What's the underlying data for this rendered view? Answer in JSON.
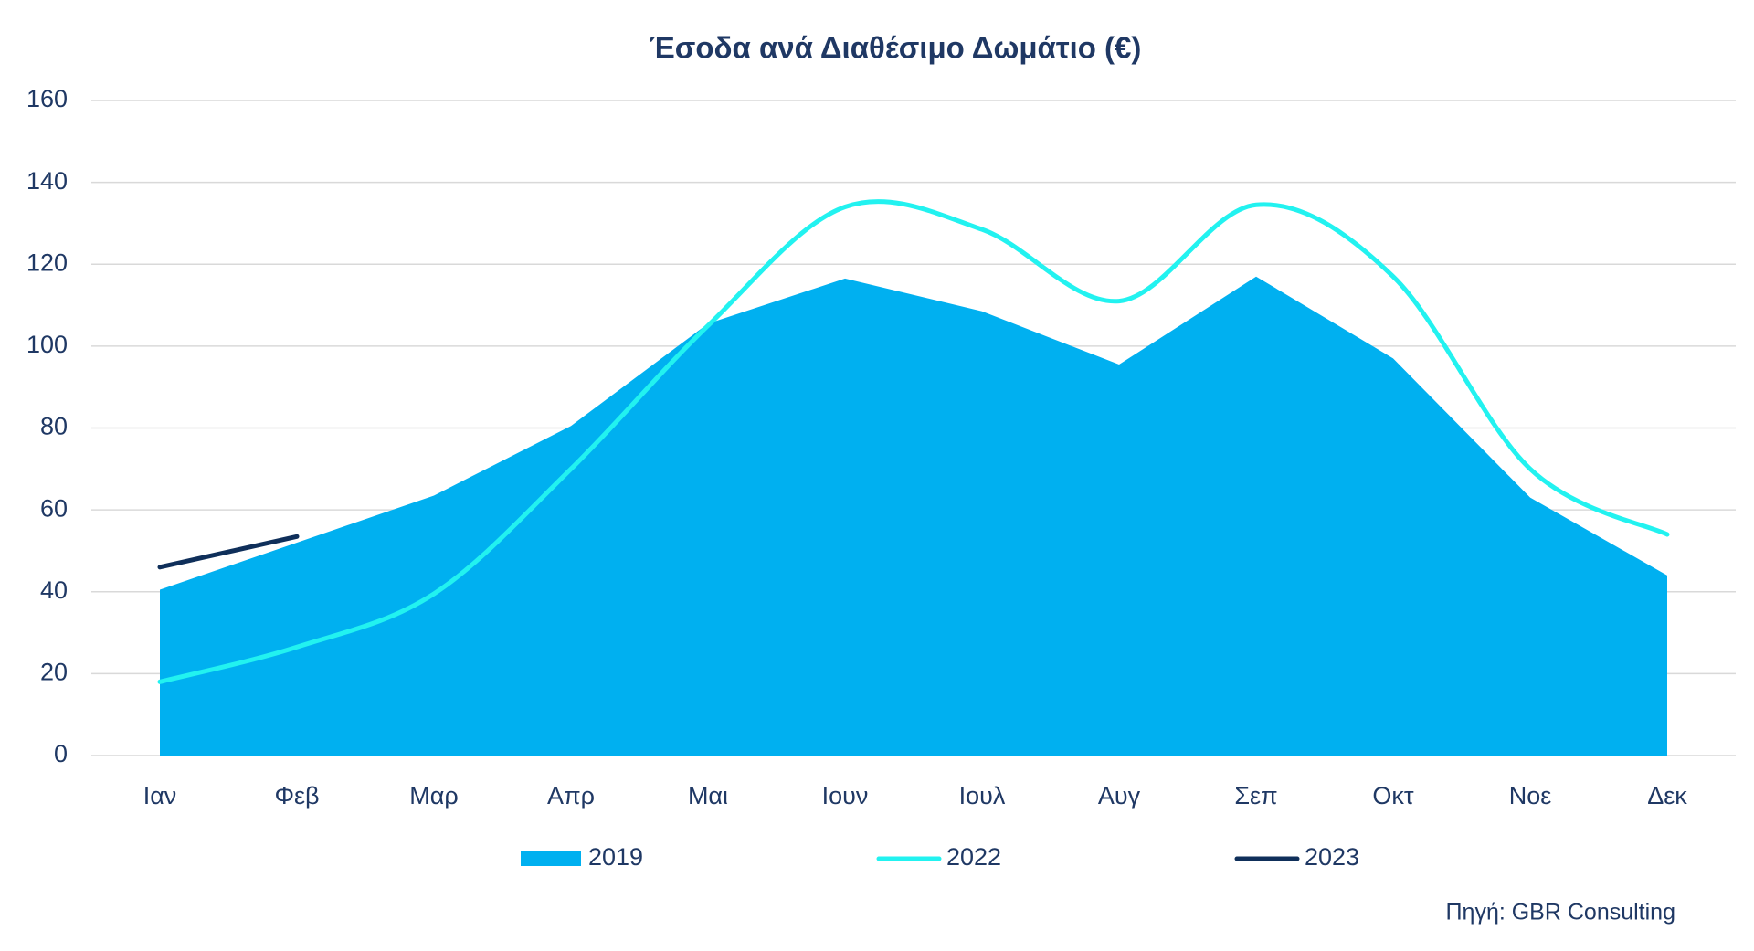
{
  "chart_data": {
    "type": "area-line",
    "title": "Έσοδα ανά Διαθέσιμο Δωμάτιο (€)",
    "categories": [
      "Ιαν",
      "Φεβ",
      "Μαρ",
      "Απρ",
      "Μαι",
      "Ιουν",
      "Ιουλ",
      "Αυγ",
      "Σεπ",
      "Οκτ",
      "Νοε",
      "Δεκ"
    ],
    "series": [
      {
        "name": "2019",
        "kind": "area",
        "color": "#00b0f0",
        "values": [
          40.5,
          52,
          63.5,
          80.5,
          105.5,
          116.5,
          108.5,
          95.5,
          117,
          97,
          63,
          44
        ]
      },
      {
        "name": "2022",
        "kind": "line",
        "smooth": true,
        "color": "#22f2f0",
        "values": [
          18,
          26.5,
          39.5,
          70,
          105,
          134,
          128.5,
          111,
          134.5,
          117,
          70,
          54
        ]
      },
      {
        "name": "2023",
        "kind": "line",
        "smooth": false,
        "color": "#0f2f5a",
        "values": [
          46,
          53.5,
          null,
          null,
          null,
          null,
          null,
          null,
          null,
          null,
          null,
          null
        ]
      }
    ],
    "ylim": [
      0,
      160
    ],
    "yticks": [
      0,
      20,
      40,
      60,
      80,
      100,
      120,
      140,
      160
    ],
    "grid": true,
    "legend": "bottom",
    "source": "Πηγή: GBR Consulting"
  }
}
